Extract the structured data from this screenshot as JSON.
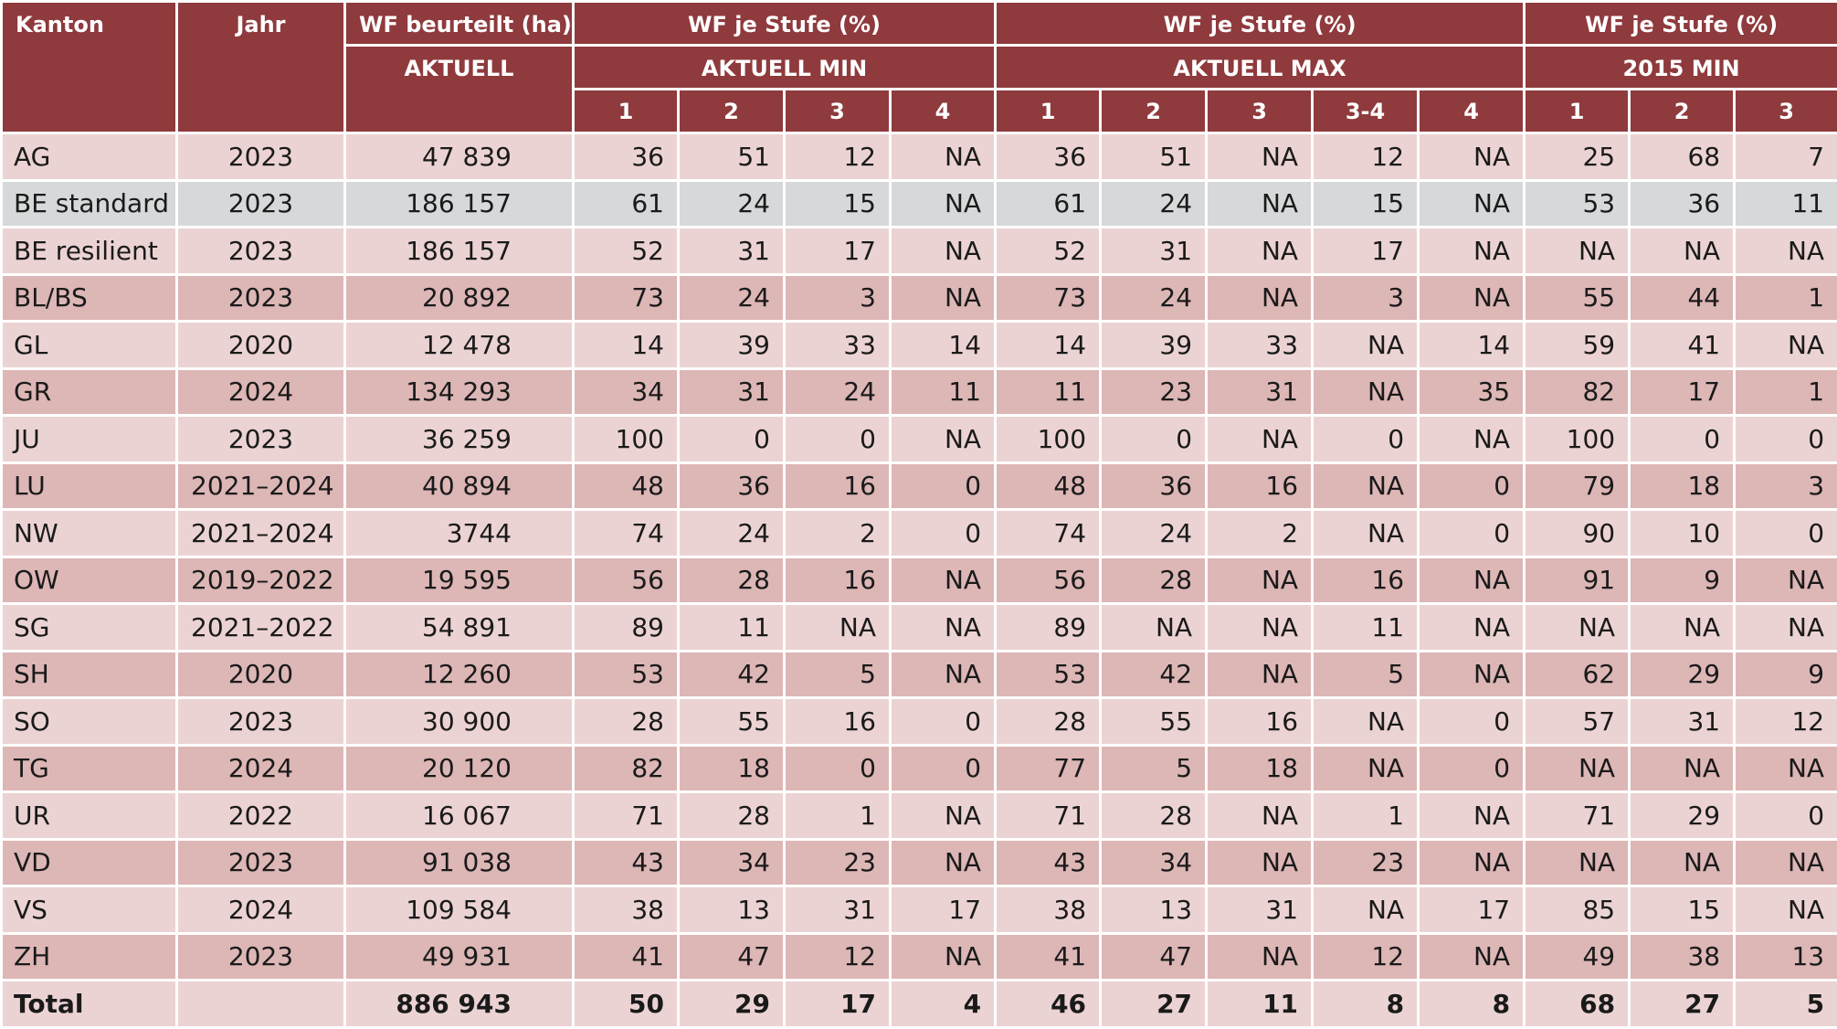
{
  "header": {
    "kanton": "Kanton",
    "jahr": "Jahr",
    "wf_beurteilt": "WF beurteilt (ha)",
    "aktuell": "AKTUELL",
    "groups": [
      {
        "title": "WF je Stufe (%)",
        "sub": "AKTUELL MIN",
        "levels": [
          "1",
          "2",
          "3",
          "4"
        ]
      },
      {
        "title": "WF je Stufe (%)",
        "sub": "AKTUELL MAX",
        "levels": [
          "1",
          "2",
          "3",
          "3-4",
          "4"
        ]
      },
      {
        "title": "WF je Stufe (%)",
        "sub": "2015 MIN",
        "levels": [
          "1",
          "2",
          "3"
        ]
      }
    ]
  },
  "rows": [
    {
      "shade": "light",
      "kanton": "AG",
      "jahr": "2023",
      "ha": "47 839",
      "min": [
        "36",
        "51",
        "12",
        "NA"
      ],
      "max": [
        "36",
        "51",
        "NA",
        "12",
        "NA"
      ],
      "m2015": [
        "25",
        "68",
        "7"
      ]
    },
    {
      "shade": "grey",
      "kanton": "BE standard",
      "jahr": "2023",
      "ha": "186 157",
      "min": [
        "61",
        "24",
        "15",
        "NA"
      ],
      "max": [
        "61",
        "24",
        "NA",
        "15",
        "NA"
      ],
      "m2015": [
        "53",
        "36",
        "11"
      ]
    },
    {
      "shade": "light",
      "kanton": "BE resilient",
      "jahr": "2023",
      "ha": "186 157",
      "min": [
        "52",
        "31",
        "17",
        "NA"
      ],
      "max": [
        "52",
        "31",
        "NA",
        "17",
        "NA"
      ],
      "m2015": [
        "NA",
        "NA",
        "NA"
      ]
    },
    {
      "shade": "dark",
      "kanton": "BL/BS",
      "jahr": "2023",
      "ha": "20 892",
      "min": [
        "73",
        "24",
        "3",
        "NA"
      ],
      "max": [
        "73",
        "24",
        "NA",
        "3",
        "NA"
      ],
      "m2015": [
        "55",
        "44",
        "1"
      ]
    },
    {
      "shade": "light",
      "kanton": "GL",
      "jahr": "2020",
      "ha": "12 478",
      "min": [
        "14",
        "39",
        "33",
        "14"
      ],
      "max": [
        "14",
        "39",
        "33",
        "NA",
        "14"
      ],
      "m2015": [
        "59",
        "41",
        "NA"
      ]
    },
    {
      "shade": "dark",
      "kanton": "GR",
      "jahr": "2024",
      "ha": "134 293",
      "min": [
        "34",
        "31",
        "24",
        "11"
      ],
      "max": [
        "11",
        "23",
        "31",
        "NA",
        "35"
      ],
      "m2015": [
        "82",
        "17",
        "1"
      ]
    },
    {
      "shade": "light",
      "kanton": "JU",
      "jahr": "2023",
      "ha": "36 259",
      "min": [
        "100",
        "0",
        "0",
        "NA"
      ],
      "max": [
        "100",
        "0",
        "NA",
        "0",
        "NA"
      ],
      "m2015": [
        "100",
        "0",
        "0"
      ]
    },
    {
      "shade": "dark",
      "kanton": "LU",
      "jahr": "2021–2024",
      "ha": "40 894",
      "min": [
        "48",
        "36",
        "16",
        "0"
      ],
      "max": [
        "48",
        "36",
        "16",
        "NA",
        "0"
      ],
      "m2015": [
        "79",
        "18",
        "3"
      ]
    },
    {
      "shade": "light",
      "kanton": "NW",
      "jahr": "2021–2024",
      "ha": "3744",
      "min": [
        "74",
        "24",
        "2",
        "0"
      ],
      "max": [
        "74",
        "24",
        "2",
        "NA",
        "0"
      ],
      "m2015": [
        "90",
        "10",
        "0"
      ]
    },
    {
      "shade": "dark",
      "kanton": "OW",
      "jahr": "2019–2022",
      "ha": "19 595",
      "min": [
        "56",
        "28",
        "16",
        "NA"
      ],
      "max": [
        "56",
        "28",
        "NA",
        "16",
        "NA"
      ],
      "m2015": [
        "91",
        "9",
        "NA"
      ]
    },
    {
      "shade": "light",
      "kanton": "SG",
      "jahr": "2021–2022",
      "ha": "54 891",
      "min": [
        "89",
        "11",
        "NA",
        "NA"
      ],
      "max": [
        "89",
        "NA",
        "NA",
        "11",
        "NA"
      ],
      "m2015": [
        "NA",
        "NA",
        "NA"
      ]
    },
    {
      "shade": "dark",
      "kanton": "SH",
      "jahr": "2020",
      "ha": "12 260",
      "min": [
        "53",
        "42",
        "5",
        "NA"
      ],
      "max": [
        "53",
        "42",
        "NA",
        "5",
        "NA"
      ],
      "m2015": [
        "62",
        "29",
        "9"
      ]
    },
    {
      "shade": "light",
      "kanton": "SO",
      "jahr": "2023",
      "ha": "30 900",
      "min": [
        "28",
        "55",
        "16",
        "0"
      ],
      "max": [
        "28",
        "55",
        "16",
        "NA",
        "0"
      ],
      "m2015": [
        "57",
        "31",
        "12"
      ]
    },
    {
      "shade": "dark",
      "kanton": "TG",
      "jahr": "2024",
      "ha": "20 120",
      "min": [
        "82",
        "18",
        "0",
        "0"
      ],
      "max": [
        "77",
        "5",
        "18",
        "NA",
        "0"
      ],
      "m2015": [
        "NA",
        "NA",
        "NA"
      ]
    },
    {
      "shade": "light",
      "kanton": "UR",
      "jahr": "2022",
      "ha": "16 067",
      "min": [
        "71",
        "28",
        "1",
        "NA"
      ],
      "max": [
        "71",
        "28",
        "NA",
        "1",
        "NA"
      ],
      "m2015": [
        "71",
        "29",
        "0"
      ]
    },
    {
      "shade": "dark",
      "kanton": "VD",
      "jahr": "2023",
      "ha": "91 038",
      "min": [
        "43",
        "34",
        "23",
        "NA"
      ],
      "max": [
        "43",
        "34",
        "NA",
        "23",
        "NA"
      ],
      "m2015": [
        "NA",
        "NA",
        "NA"
      ]
    },
    {
      "shade": "light",
      "kanton": "VS",
      "jahr": "2024",
      "ha": "109 584",
      "min": [
        "38",
        "13",
        "31",
        "17"
      ],
      "max": [
        "38",
        "13",
        "31",
        "NA",
        "17"
      ],
      "m2015": [
        "85",
        "15",
        "NA"
      ]
    },
    {
      "shade": "dark",
      "kanton": "ZH",
      "jahr": "2023",
      "ha": "49 931",
      "min": [
        "41",
        "47",
        "12",
        "NA"
      ],
      "max": [
        "41",
        "47",
        "NA",
        "12",
        "NA"
      ],
      "m2015": [
        "49",
        "38",
        "13"
      ]
    }
  ],
  "total": {
    "kanton": "Total",
    "jahr": "",
    "ha": "886 943",
    "min": [
      "50",
      "29",
      "17",
      "4"
    ],
    "max": [
      "46",
      "27",
      "11",
      "8",
      "8"
    ],
    "m2015": [
      "68",
      "27",
      "5"
    ]
  }
}
